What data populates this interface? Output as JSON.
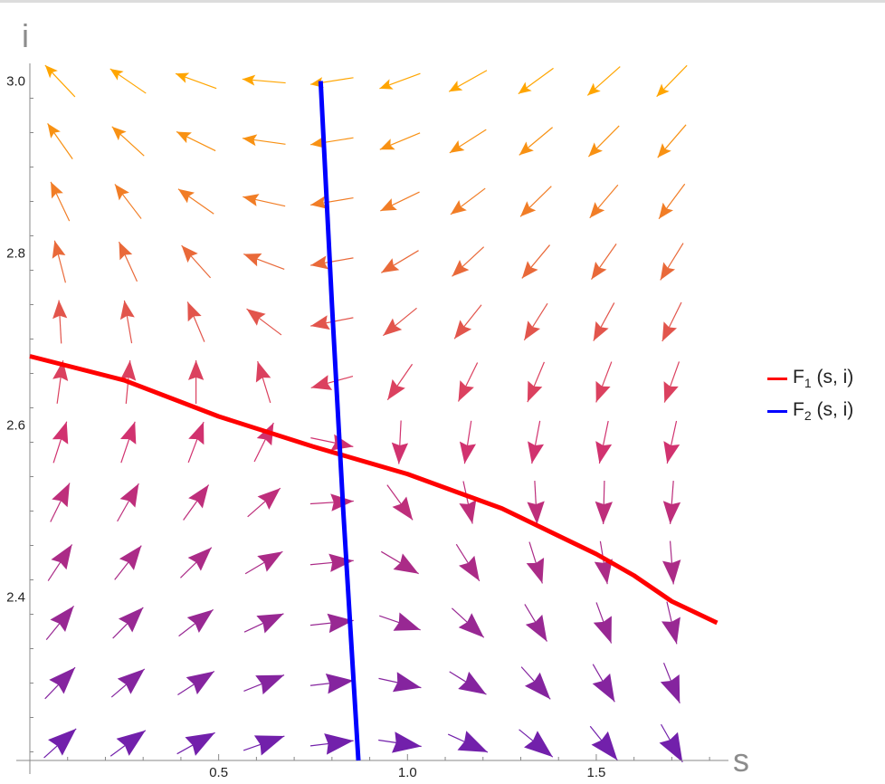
{
  "chart_data": {
    "type": "vector-field",
    "title": "",
    "xlabel": "s",
    "ylabel": "i",
    "xlim": [
      0.0,
      1.85
    ],
    "ylim": [
      2.21,
      3.01
    ],
    "x_ticks": [
      0.5,
      1.0,
      1.5
    ],
    "y_ticks": [
      2.4,
      2.6,
      2.8,
      3.0
    ],
    "x_tick_labels": [
      "0.5",
      "1.0",
      "1.5"
    ],
    "y_tick_labels": [
      "2.4",
      "2.6",
      "2.8",
      "3.0"
    ],
    "grid": false,
    "legend_position": "right",
    "series": [
      {
        "legend_name": "F",
        "legend_sub": "1",
        "legend_args": " (s, i)",
        "color": "#ff0000",
        "points": [
          [
            0.0,
            2.68
          ],
          [
            0.25,
            2.652
          ],
          [
            0.5,
            2.61
          ],
          [
            0.75,
            2.575
          ],
          [
            1.0,
            2.543
          ],
          [
            1.25,
            2.503
          ],
          [
            1.5,
            2.45
          ],
          [
            1.6,
            2.425
          ],
          [
            1.7,
            2.395
          ],
          [
            1.82,
            2.37
          ]
        ]
      },
      {
        "legend_name": "F",
        "legend_sub": "2",
        "legend_args": " (s, i)",
        "color": "#0000ff",
        "points": [
          [
            0.77,
            3.0
          ],
          [
            0.8,
            2.74
          ],
          [
            0.83,
            2.5
          ],
          [
            0.87,
            2.21
          ]
        ]
      }
    ],
    "field": {
      "note_color_scale": "purple = slow, orange/yellow = fast",
      "color_low": "#6a1fb0",
      "color_mid": "#d6336c",
      "color_high": "#ffa500",
      "s_samples": [
        0.08,
        0.26,
        0.44,
        0.62,
        0.8,
        0.98,
        1.16,
        1.34,
        1.52,
        1.7
      ],
      "i_samples": [
        2.23,
        2.3,
        2.37,
        2.44,
        2.51,
        2.58,
        2.65,
        2.72,
        2.79,
        2.86,
        2.93,
        3.0
      ]
    }
  }
}
